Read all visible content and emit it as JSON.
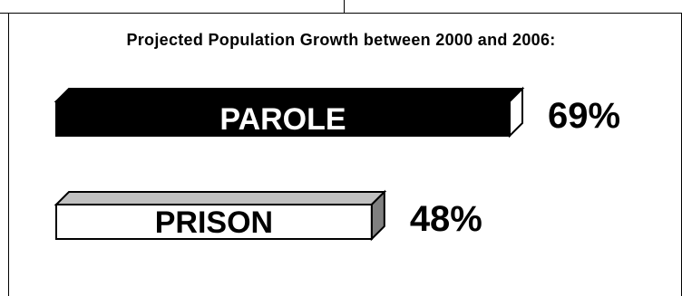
{
  "chart_data": {
    "type": "bar",
    "orientation": "horizontal",
    "title": "Projected Population Growth between 2000 and 2006:",
    "categories": [
      "PAROLE",
      "PRISON"
    ],
    "values": [
      69,
      48
    ],
    "value_labels": [
      "69%",
      "48%"
    ],
    "unit": "%",
    "style": "3d",
    "bar_colors": [
      "#000000",
      "#ffffff"
    ],
    "bar_top_colors": [
      "#000000",
      "#c0c0c0"
    ],
    "bar_side_colors": [
      "#ffffff",
      "#808080"
    ],
    "label_colors": [
      "#ffffff",
      "#000000"
    ],
    "grid": false,
    "legend": "none"
  }
}
